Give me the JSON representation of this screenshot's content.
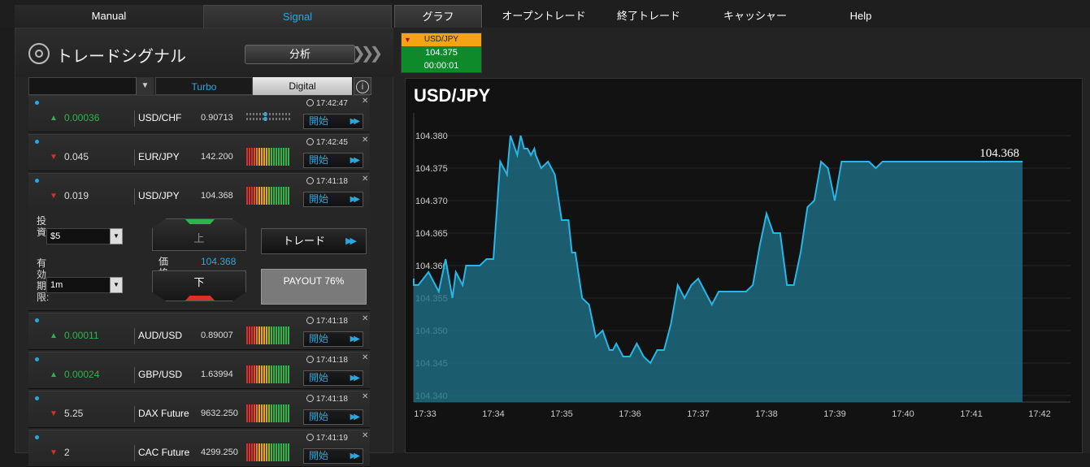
{
  "tabs": {
    "manual": "Manual",
    "signal": "Signal"
  },
  "nav": {
    "graph": "グラフ",
    "open_trades": "オープントレード",
    "closed_trades": "終了トレード",
    "cashier": "キャッシャー",
    "help": "Help"
  },
  "panel": {
    "title": "トレードシグナル",
    "analyze": "分析",
    "filter": {
      "selected": "",
      "turbo": "Turbo",
      "digital": "Digital"
    }
  },
  "signals": [
    {
      "time": "17:42:47",
      "direction": "up",
      "change": "0.00036",
      "asset": "USD/CHF",
      "price": "0.90713",
      "start": "開始"
    },
    {
      "time": "17:42:45",
      "direction": "down",
      "change": "0.045",
      "asset": "EUR/JPY",
      "price": "142.200",
      "start": "開始"
    },
    {
      "time": "17:41:18",
      "direction": "down",
      "change": "0.019",
      "asset": "USD/JPY",
      "price": "104.368",
      "start": "開始"
    },
    {
      "time": "17:41:18",
      "direction": "up",
      "change": "0.00011",
      "asset": "AUD/USD",
      "price": "0.89007",
      "start": "開始"
    },
    {
      "time": "17:41:18",
      "direction": "up",
      "change": "0.00024",
      "asset": "GBP/USD",
      "price": "1.63994",
      "start": "開始"
    },
    {
      "time": "17:41:18",
      "direction": "down",
      "change": "5.25",
      "asset": "DAX Future",
      "price": "9632.250",
      "start": "開始"
    },
    {
      "time": "17:41:19",
      "direction": "down",
      "change": "2",
      "asset": "CAC Future",
      "price": "4299.250",
      "start": "開始"
    }
  ],
  "trade_form": {
    "invest_label": "投資:",
    "invest_value": "$5",
    "expiry_label": "有効期限:",
    "expiry_value": "1m",
    "up": "上",
    "down": "下",
    "price_label": "価格",
    "price_value": "104.368",
    "trade": "トレード",
    "payout": "PAYOUT 76%"
  },
  "ticker": {
    "pair": "USD/JPY",
    "price": "104.375",
    "countdown": "00:00:01"
  },
  "colors": {
    "accent": "#29a8e0",
    "up": "#2fb34a",
    "down": "#d9302c",
    "area": "#1e6f86"
  },
  "chart_data": {
    "type": "area",
    "title": "USD/JPY",
    "current_label": "104.368",
    "x_ticks": [
      "17:33",
      "17:34",
      "17:35",
      "17:36",
      "17:37",
      "17:38",
      "17:39",
      "17:40",
      "17:41",
      "17:42"
    ],
    "y_ticks": [
      104.34,
      104.345,
      104.35,
      104.355,
      104.36,
      104.365,
      104.37,
      104.375,
      104.38
    ],
    "y_ticks_labels": [
      "104.340",
      "104.345",
      "104.350",
      "104.355",
      "104.360",
      "104.365",
      "104.370",
      "104.375",
      "104.380"
    ],
    "ylim": [
      104.339,
      104.383
    ],
    "x_minutes": [
      -0.3,
      -0.2,
      -0.1,
      0.05,
      0.2,
      0.3,
      0.4,
      0.45,
      0.55,
      0.6,
      0.7,
      0.8,
      0.9,
      1.0,
      1.1,
      1.2,
      1.25,
      1.35,
      1.4,
      1.45,
      1.5,
      1.55,
      1.6,
      1.62,
      1.7,
      1.8,
      1.9,
      2.0,
      2.1,
      2.15,
      2.2,
      2.3,
      2.4,
      2.5,
      2.6,
      2.7,
      2.75,
      2.8,
      2.9,
      3.0,
      3.1,
      3.2,
      3.3,
      3.4,
      3.5,
      3.6,
      3.65,
      3.7,
      3.8,
      3.9,
      4.0,
      4.1,
      4.2,
      4.3,
      4.4,
      4.5,
      4.6,
      4.7,
      4.8,
      4.9,
      5.0,
      5.1,
      5.2,
      5.3,
      5.4,
      5.5,
      5.6,
      5.7,
      5.8,
      5.9,
      6.0,
      6.1,
      6.2,
      6.3,
      6.4,
      6.5,
      6.6,
      6.7,
      6.8,
      6.9,
      7.0,
      7.1,
      7.2,
      7.3,
      7.35,
      7.4,
      7.5,
      7.6,
      7.7,
      7.8,
      7.9,
      8.0,
      8.1,
      8.2,
      8.3,
      8.4,
      8.45,
      8.5,
      8.6,
      8.7,
      8.75
    ],
    "values": [
      104.358,
      104.357,
      104.357,
      104.359,
      104.356,
      104.361,
      104.355,
      104.359,
      104.357,
      104.36,
      104.36,
      104.36,
      104.361,
      104.361,
      104.376,
      104.374,
      104.38,
      104.377,
      104.38,
      104.378,
      104.378,
      104.377,
      104.378,
      104.377,
      104.375,
      104.376,
      104.374,
      104.367,
      104.367,
      104.362,
      104.362,
      104.355,
      104.354,
      104.349,
      104.35,
      104.347,
      104.347,
      104.348,
      104.346,
      104.346,
      104.348,
      104.346,
      104.345,
      104.347,
      104.347,
      104.351,
      104.354,
      104.357,
      104.355,
      104.357,
      104.358,
      104.356,
      104.354,
      104.356,
      104.356,
      104.356,
      104.356,
      104.356,
      104.357,
      104.363,
      104.368,
      104.365,
      104.365,
      104.357,
      104.357,
      104.362,
      104.369,
      104.37,
      104.376,
      104.375,
      104.37,
      104.376,
      104.376,
      104.376,
      104.376,
      104.376,
      104.375,
      104.376,
      104.376,
      104.376,
      104.376,
      104.376,
      104.376,
      104.376,
      104.376,
      104.376,
      104.376,
      104.376,
      104.376,
      104.376,
      104.376,
      104.376,
      104.376,
      104.376,
      104.376,
      104.376,
      104.376,
      104.376,
      104.376,
      104.376,
      104.376
    ]
  }
}
